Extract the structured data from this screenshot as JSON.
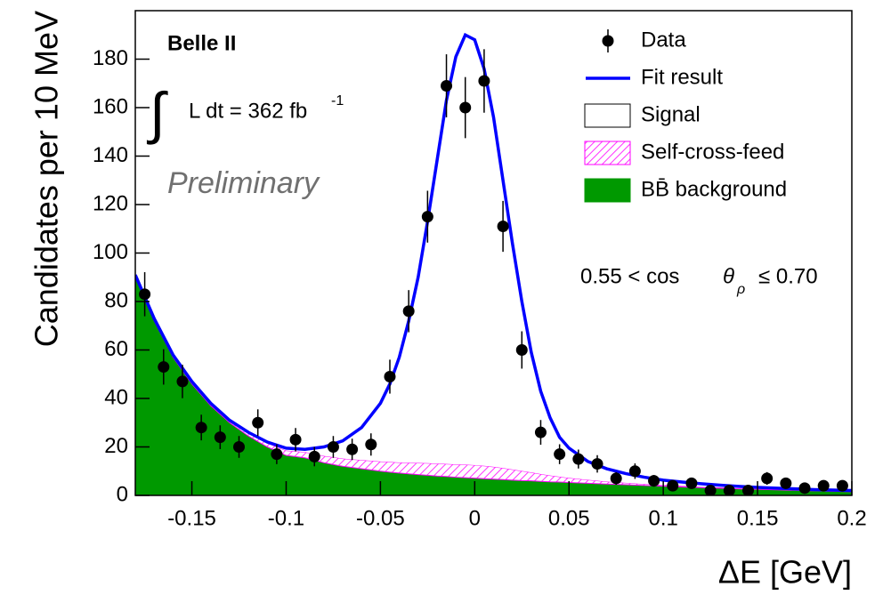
{
  "chart_data": {
    "type": "fit",
    "x_label": "ΔE [GeV]",
    "y_label": "Candidates per 10 MeV",
    "xlim": [
      -0.18,
      0.2
    ],
    "ylim": [
      0,
      200
    ],
    "xticks": [
      -0.15,
      -0.1,
      -0.05,
      0,
      0.05,
      0.1,
      0.15,
      0.2
    ],
    "yticks": [
      0,
      20,
      40,
      60,
      80,
      100,
      120,
      140,
      160,
      180
    ],
    "annotations": [
      "Belle II",
      "∫",
      "L dt = 362 fb",
      "-1",
      "Preliminary",
      "0.55 < cos",
      "θ",
      "ρ",
      "≤ 0.70"
    ],
    "x": [
      -0.18,
      -0.17,
      -0.16,
      -0.15,
      -0.14,
      -0.13,
      -0.12,
      -0.11,
      -0.1,
      -0.09,
      -0.08,
      -0.07,
      -0.06,
      -0.05,
      -0.045,
      -0.04,
      -0.035,
      -0.03,
      -0.025,
      -0.02,
      -0.015,
      -0.01,
      -0.005,
      0,
      0.005,
      0.01,
      0.015,
      0.02,
      0.025,
      0.03,
      0.035,
      0.04,
      0.045,
      0.05,
      0.06,
      0.07,
      0.08,
      0.09,
      0.1,
      0.11,
      0.12,
      0.13,
      0.14,
      0.15,
      0.16,
      0.17,
      0.18,
      0.19,
      0.2
    ],
    "series": [
      {
        "name": "Data",
        "kind": "points",
        "color": "#000000",
        "x": [
          -0.175,
          -0.165,
          -0.155,
          -0.145,
          -0.135,
          -0.125,
          -0.115,
          -0.105,
          -0.095,
          -0.085,
          -0.075,
          -0.065,
          -0.055,
          -0.045,
          -0.035,
          -0.025,
          -0.015,
          -0.005,
          0.005,
          0.015,
          0.025,
          0.035,
          0.045,
          0.055,
          0.065,
          0.075,
          0.085,
          0.095,
          0.105,
          0.115,
          0.125,
          0.135,
          0.145,
          0.155,
          0.165,
          0.175,
          0.185,
          0.195
        ],
        "values": [
          83,
          53,
          47,
          28,
          24,
          20,
          30,
          17,
          23,
          16,
          20,
          19,
          21,
          49,
          76,
          115,
          169,
          160,
          171,
          111,
          60,
          26,
          17,
          15,
          13,
          7,
          10,
          6,
          4,
          5,
          2,
          2,
          2,
          7,
          5,
          3,
          4,
          4
        ],
        "errors": [
          9.1,
          7.3,
          6.9,
          5.3,
          4.9,
          4.5,
          5.5,
          4.1,
          4.8,
          4,
          4.5,
          4.4,
          4.6,
          7,
          8.7,
          10.7,
          13,
          12.6,
          13.1,
          10.5,
          7.7,
          5.1,
          4.1,
          3.9,
          3.6,
          2.6,
          3.2,
          2.4,
          2,
          2.2,
          1.4,
          1.4,
          1.4,
          2.6,
          2.2,
          1.7,
          2,
          2
        ]
      },
      {
        "name": "Fit result",
        "kind": "line",
        "color": "#0000ff",
        "values": [
          91,
          73,
          58,
          47,
          38,
          31,
          26,
          22,
          19.5,
          19,
          20,
          22.5,
          28,
          38,
          46,
          57,
          72,
          90,
          113,
          138,
          163,
          181,
          190,
          188,
          176,
          156,
          130,
          104,
          80,
          59,
          43,
          32,
          24,
          19.5,
          14,
          11,
          9,
          7.5,
          6.3,
          5.5,
          4.8,
          4.2,
          3.7,
          3.3,
          3,
          2.7,
          2.4,
          2.2,
          2
        ]
      },
      {
        "name": "Signal",
        "kind": "area",
        "filled": false,
        "color": "#000000",
        "values": [
          0.7,
          0.6,
          0.5,
          0.4,
          0.2,
          0,
          0.2,
          0.4,
          1,
          1.1,
          3.7,
          7.3,
          13.4,
          24,
          32.2,
          43.4,
          58.5,
          76.6,
          99.7,
          124.9,
          150,
          168.2,
          177.3,
          175.5,
          163.8,
          144.2,
          118.7,
          93.3,
          69.9,
          49.5,
          34.2,
          23.8,
          16.3,
          12.3,
          7.6,
          5.3,
          3.8,
          2.8,
          2,
          1.6,
          1.3,
          0.9,
          0.8,
          0.6,
          0.5,
          0.5,
          0.4,
          0.4,
          0.4
        ]
      },
      {
        "name": "Self-cross-feed",
        "kind": "area",
        "hatched": true,
        "color": "#ff00ff",
        "values": [
          0.3,
          0.4,
          0.5,
          0.6,
          0.8,
          1,
          1.3,
          1.6,
          2,
          2.4,
          2.8,
          3.2,
          3.6,
          4,
          4.2,
          4.4,
          4.6,
          4.8,
          5,
          5.1,
          5.2,
          5.3,
          5.4,
          5.4,
          5.3,
          5.1,
          4.8,
          4.4,
          4,
          3.5,
          3,
          2.6,
          2.2,
          1.9,
          1.4,
          1,
          0.8,
          0.6,
          0.5,
          0.4,
          0.3,
          0.3,
          0.2,
          0.2,
          0.2,
          0.1,
          0.1,
          0.1,
          0.1
        ]
      },
      {
        "name": "BB̄ background",
        "kind": "area",
        "filled": true,
        "color": "#009900",
        "values": [
          90,
          72,
          57,
          46,
          37,
          30,
          24.5,
          20,
          16.5,
          15.5,
          13.5,
          12,
          11,
          10,
          9.6,
          9.2,
          8.9,
          8.6,
          8.3,
          8,
          7.8,
          7.5,
          7.3,
          7.1,
          6.9,
          6.7,
          6.5,
          6.3,
          6.1,
          6,
          5.8,
          5.6,
          5.5,
          5.3,
          5,
          4.7,
          4.4,
          4.1,
          3.8,
          3.5,
          3.2,
          3,
          2.7,
          2.5,
          2.3,
          2.1,
          1.9,
          1.7,
          1.5
        ]
      }
    ]
  }
}
